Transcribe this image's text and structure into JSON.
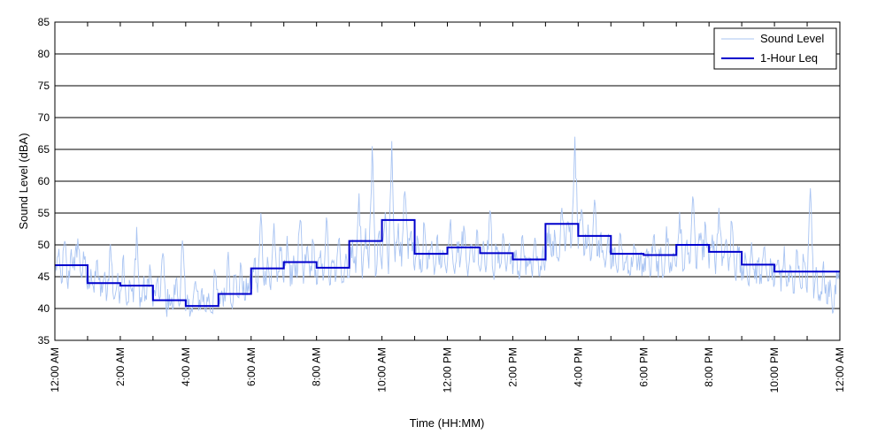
{
  "chart_data": {
    "type": "line",
    "xlabel": "Time (HH:MM)",
    "ylabel": "Sound Level (dBA)",
    "ylim": [
      35,
      85
    ],
    "y_ticks": [
      "35",
      "40",
      "45",
      "50",
      "55",
      "60",
      "65",
      "70",
      "75",
      "80",
      "85"
    ],
    "xlim": [
      0,
      24
    ],
    "x_ticks": [
      {
        "hour": 0,
        "label": "12:00 AM"
      },
      {
        "hour": 2,
        "label": "2:00 AM"
      },
      {
        "hour": 4,
        "label": "4:00 AM"
      },
      {
        "hour": 6,
        "label": "6:00 AM"
      },
      {
        "hour": 8,
        "label": "8:00 AM"
      },
      {
        "hour": 10,
        "label": "10:00 AM"
      },
      {
        "hour": 12,
        "label": "12:00 PM"
      },
      {
        "hour": 14,
        "label": "2:00 PM"
      },
      {
        "hour": 16,
        "label": "4:00 PM"
      },
      {
        "hour": 18,
        "label": "6:00 PM"
      },
      {
        "hour": 20,
        "label": "8:00 PM"
      },
      {
        "hour": 22,
        "label": "10:00 PM"
      },
      {
        "hour": 24,
        "label": "12:00 AM"
      }
    ],
    "grid": "horizontal",
    "legend_position": "top-right",
    "series": [
      {
        "name": "Sound Level",
        "color": "#a9c4f2",
        "style": "thin",
        "description_points": [
          [
            0.0,
            45.5
          ],
          [
            0.1,
            48.2
          ],
          [
            0.2,
            44.0
          ],
          [
            0.3,
            50.6
          ],
          [
            0.4,
            43.1
          ],
          [
            0.5,
            49.3
          ],
          [
            0.6,
            46.0
          ],
          [
            0.7,
            51.0
          ],
          [
            0.8,
            45.2
          ],
          [
            0.9,
            47.7
          ],
          [
            1.0,
            43.0
          ],
          [
            1.1,
            46.2
          ],
          [
            1.2,
            42.5
          ],
          [
            1.3,
            47.6
          ],
          [
            1.4,
            41.9
          ],
          [
            1.5,
            44.8
          ],
          [
            1.6,
            42.3
          ],
          [
            1.7,
            50.1
          ],
          [
            1.8,
            41.5
          ],
          [
            1.9,
            43.9
          ],
          [
            2.0,
            42.6
          ],
          [
            2.1,
            48.4
          ],
          [
            2.2,
            40.5
          ],
          [
            2.3,
            44.0
          ],
          [
            2.4,
            41.0
          ],
          [
            2.5,
            52.8
          ],
          [
            2.6,
            40.2
          ],
          [
            2.7,
            43.6
          ],
          [
            2.8,
            41.4
          ],
          [
            2.9,
            46.9
          ],
          [
            3.0,
            40.3
          ],
          [
            3.1,
            43.8
          ],
          [
            3.2,
            41.5
          ],
          [
            3.3,
            48.7
          ],
          [
            3.4,
            40.0
          ],
          [
            3.5,
            42.2
          ],
          [
            3.6,
            39.8
          ],
          [
            3.7,
            44.5
          ],
          [
            3.8,
            40.4
          ],
          [
            3.9,
            50.7
          ],
          [
            4.0,
            39.6
          ],
          [
            4.1,
            41.5
          ],
          [
            4.2,
            39.4
          ],
          [
            4.3,
            44.3
          ],
          [
            4.4,
            39.7
          ],
          [
            4.5,
            43.2
          ],
          [
            4.6,
            39.6
          ],
          [
            4.7,
            42.4
          ],
          [
            4.8,
            39.4
          ],
          [
            4.9,
            45.6
          ],
          [
            5.0,
            40.2
          ],
          [
            5.1,
            42.8
          ],
          [
            5.2,
            41.1
          ],
          [
            5.3,
            48.9
          ],
          [
            5.4,
            40.5
          ],
          [
            5.5,
            45.2
          ],
          [
            5.6,
            41.8
          ],
          [
            5.7,
            46.5
          ],
          [
            5.8,
            41.3
          ],
          [
            5.9,
            44.0
          ],
          [
            6.0,
            43.0
          ],
          [
            6.1,
            47.8
          ],
          [
            6.2,
            42.5
          ],
          [
            6.3,
            55.0
          ],
          [
            6.4,
            43.6
          ],
          [
            6.5,
            48.1
          ],
          [
            6.6,
            42.9
          ],
          [
            6.7,
            53.4
          ],
          [
            6.8,
            44.2
          ],
          [
            6.9,
            49.0
          ],
          [
            7.0,
            44.1
          ],
          [
            7.1,
            51.4
          ],
          [
            7.2,
            43.5
          ],
          [
            7.3,
            48.3
          ],
          [
            7.4,
            44.8
          ],
          [
            7.5,
            53.9
          ],
          [
            7.6,
            43.9
          ],
          [
            7.7,
            49.6
          ],
          [
            7.8,
            45.1
          ],
          [
            7.9,
            50.4
          ],
          [
            8.0,
            43.8
          ],
          [
            8.1,
            48.0
          ],
          [
            8.2,
            44.4
          ],
          [
            8.3,
            54.3
          ],
          [
            8.4,
            43.7
          ],
          [
            8.5,
            47.2
          ],
          [
            8.6,
            45.0
          ],
          [
            8.7,
            51.1
          ],
          [
            8.8,
            44.2
          ],
          [
            8.9,
            48.6
          ],
          [
            9.0,
            44.9
          ],
          [
            9.1,
            50.8
          ],
          [
            9.2,
            45.6
          ],
          [
            9.3,
            58.1
          ],
          [
            9.4,
            44.7
          ],
          [
            9.5,
            52.6
          ],
          [
            9.6,
            46.3
          ],
          [
            9.7,
            65.5
          ],
          [
            9.8,
            45.0
          ],
          [
            9.9,
            51.7
          ],
          [
            10.0,
            46.2
          ],
          [
            10.1,
            55.1
          ],
          [
            10.2,
            45.4
          ],
          [
            10.3,
            66.3
          ],
          [
            10.4,
            47.3
          ],
          [
            10.5,
            53.4
          ],
          [
            10.6,
            46.6
          ],
          [
            10.7,
            58.4
          ],
          [
            10.8,
            47.8
          ],
          [
            10.9,
            52.2
          ],
          [
            11.0,
            46.0
          ],
          [
            11.1,
            50.8
          ],
          [
            11.2,
            45.7
          ],
          [
            11.3,
            53.2
          ],
          [
            11.4,
            46.5
          ],
          [
            11.5,
            49.5
          ],
          [
            11.6,
            45.3
          ],
          [
            11.7,
            51.6
          ],
          [
            11.8,
            46.4
          ],
          [
            11.9,
            48.7
          ],
          [
            12.0,
            47.0
          ],
          [
            12.1,
            54.0
          ],
          [
            12.2,
            46.2
          ],
          [
            12.3,
            50.5
          ],
          [
            12.4,
            47.5
          ],
          [
            12.5,
            53.0
          ],
          [
            12.6,
            46.4
          ],
          [
            12.7,
            49.8
          ],
          [
            12.8,
            47.3
          ],
          [
            12.9,
            52.4
          ],
          [
            13.0,
            45.9
          ],
          [
            13.1,
            50.6
          ],
          [
            13.2,
            46.8
          ],
          [
            13.3,
            55.4
          ],
          [
            13.4,
            45.6
          ],
          [
            13.5,
            49.2
          ],
          [
            13.6,
            46.3
          ],
          [
            13.7,
            51.8
          ],
          [
            13.8,
            45.8
          ],
          [
            13.9,
            50.3
          ],
          [
            14.0,
            45.4
          ],
          [
            14.1,
            49.2
          ],
          [
            14.2,
            44.6
          ],
          [
            14.3,
            51.5
          ],
          [
            14.4,
            45.3
          ],
          [
            14.5,
            48.1
          ],
          [
            14.6,
            44.9
          ],
          [
            14.7,
            50.4
          ],
          [
            14.8,
            45.2
          ],
          [
            14.9,
            48.5
          ],
          [
            15.0,
            47.7
          ],
          [
            15.1,
            53.1
          ],
          [
            15.2,
            48.1
          ],
          [
            15.3,
            51.0
          ],
          [
            15.4,
            47.4
          ],
          [
            15.5,
            55.8
          ],
          [
            15.6,
            49.0
          ],
          [
            15.7,
            53.6
          ],
          [
            15.8,
            50.5
          ],
          [
            15.9,
            67.0
          ],
          [
            16.0,
            49.4
          ],
          [
            16.1,
            55.6
          ],
          [
            16.2,
            48.6
          ],
          [
            16.3,
            53.2
          ],
          [
            16.4,
            47.9
          ],
          [
            16.5,
            57.1
          ],
          [
            16.6,
            48.3
          ],
          [
            16.7,
            52.0
          ],
          [
            16.8,
            47.6
          ],
          [
            16.9,
            50.7
          ],
          [
            17.0,
            46.2
          ],
          [
            17.1,
            49.3
          ],
          [
            17.2,
            45.6
          ],
          [
            17.3,
            51.5
          ],
          [
            17.4,
            46.1
          ],
          [
            17.5,
            48.4
          ],
          [
            17.6,
            45.3
          ],
          [
            17.7,
            50.2
          ],
          [
            17.8,
            46.0
          ],
          [
            17.9,
            48.1
          ],
          [
            18.0,
            45.7
          ],
          [
            18.1,
            49.4
          ],
          [
            18.2,
            45.1
          ],
          [
            18.3,
            51.2
          ],
          [
            18.4,
            45.8
          ],
          [
            18.5,
            48.2
          ],
          [
            18.6,
            45.0
          ],
          [
            18.7,
            52.9
          ],
          [
            18.8,
            45.6
          ],
          [
            18.9,
            48.6
          ],
          [
            19.0,
            46.6
          ],
          [
            19.1,
            55.2
          ],
          [
            19.2,
            45.8
          ],
          [
            19.3,
            50.1
          ],
          [
            19.4,
            47.0
          ],
          [
            19.5,
            57.6
          ],
          [
            19.6,
            46.4
          ],
          [
            19.7,
            51.8
          ],
          [
            19.8,
            47.6
          ],
          [
            19.9,
            52.9
          ],
          [
            20.0,
            46.3
          ],
          [
            20.1,
            51.6
          ],
          [
            20.2,
            45.4
          ],
          [
            20.3,
            55.8
          ],
          [
            20.4,
            46.7
          ],
          [
            20.5,
            50.2
          ],
          [
            20.6,
            45.9
          ],
          [
            20.7,
            53.5
          ],
          [
            20.8,
            45.0
          ],
          [
            20.9,
            49.0
          ],
          [
            21.0,
            44.4
          ],
          [
            21.1,
            48.8
          ],
          [
            21.2,
            43.8
          ],
          [
            21.3,
            50.4
          ],
          [
            21.4,
            44.6
          ],
          [
            21.5,
            47.3
          ],
          [
            21.6,
            43.9
          ],
          [
            21.7,
            49.7
          ],
          [
            21.8,
            44.3
          ],
          [
            21.9,
            47.0
          ],
          [
            22.0,
            43.8
          ],
          [
            22.1,
            47.6
          ],
          [
            22.2,
            42.7
          ],
          [
            22.3,
            49.8
          ],
          [
            22.4,
            43.6
          ],
          [
            22.5,
            46.5
          ],
          [
            22.6,
            42.4
          ],
          [
            22.7,
            48.9
          ],
          [
            22.8,
            43.3
          ],
          [
            22.9,
            47.5
          ],
          [
            23.0,
            42.5
          ],
          [
            23.1,
            58.9
          ],
          [
            23.2,
            41.6
          ],
          [
            23.3,
            45.8
          ],
          [
            23.4,
            41.2
          ],
          [
            23.5,
            47.4
          ],
          [
            23.6,
            40.8
          ],
          [
            23.7,
            44.5
          ],
          [
            23.8,
            39.5
          ],
          [
            23.9,
            46.0
          ],
          [
            24.0,
            45.6
          ]
        ]
      },
      {
        "name": "1-Hour Leq",
        "color": "#0000cc",
        "style": "step",
        "hourly_values": [
          46.8,
          44.0,
          43.6,
          41.3,
          40.4,
          42.3,
          46.3,
          47.3,
          46.4,
          50.6,
          53.9,
          48.6,
          49.6,
          48.7,
          47.7,
          53.3,
          51.4,
          48.6,
          48.4,
          50.0,
          48.9,
          46.9,
          45.8,
          45.8
        ]
      }
    ]
  }
}
